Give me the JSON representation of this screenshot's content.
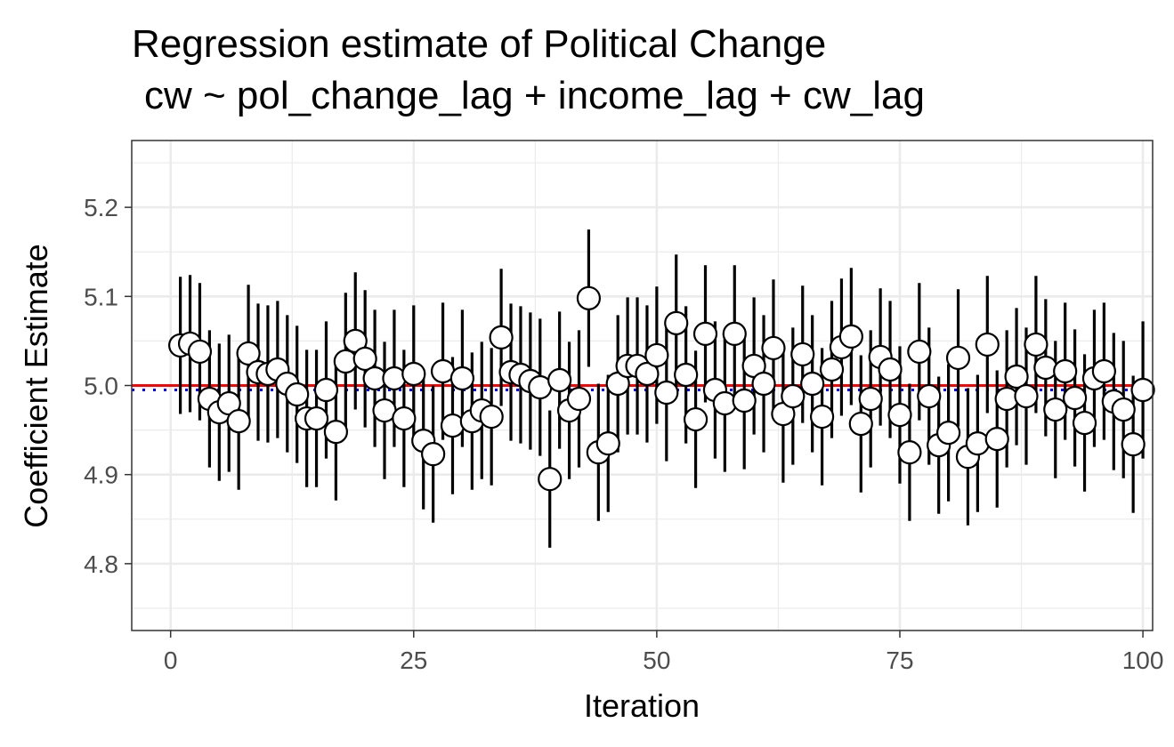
{
  "chart_data": {
    "type": "scatter",
    "title": "Regression estimate of Political Change",
    "subtitle": "cw ~ pol_change_lag + income_lag + cw_lag",
    "xlabel": "Iteration",
    "ylabel": "Coefficient Estimate",
    "xlim": [
      -4,
      101
    ],
    "ylim": [
      4.725,
      5.275
    ],
    "x_ticks": [
      "0",
      "25",
      "50",
      "75",
      "100"
    ],
    "x_tick_values": [
      0,
      25,
      50,
      75,
      100
    ],
    "y_ticks": [
      "4.8",
      "4.9",
      "5.0",
      "5.1",
      "5.2"
    ],
    "y_tick_values": [
      4.8,
      4.9,
      5.0,
      5.1,
      5.2
    ],
    "grid": true,
    "true_value": 5.0,
    "true_value_color": "#ff0000",
    "mean_estimate": 4.995,
    "mean_estimate_color": "#0000ff",
    "point_fill": "#ffffff",
    "point_stroke": "#000000",
    "ci_half_width": 0.077,
    "points": [
      {
        "x": 1,
        "y": 5.045
      },
      {
        "x": 2,
        "y": 5.047
      },
      {
        "x": 3,
        "y": 5.038
      },
      {
        "x": 4,
        "y": 4.985
      },
      {
        "x": 5,
        "y": 4.97
      },
      {
        "x": 6,
        "y": 4.98
      },
      {
        "x": 7,
        "y": 4.96
      },
      {
        "x": 8,
        "y": 5.036
      },
      {
        "x": 9,
        "y": 5.015
      },
      {
        "x": 10,
        "y": 5.013
      },
      {
        "x": 11,
        "y": 5.018
      },
      {
        "x": 12,
        "y": 5.002
      },
      {
        "x": 13,
        "y": 4.99
      },
      {
        "x": 14,
        "y": 4.963
      },
      {
        "x": 15,
        "y": 4.963
      },
      {
        "x": 16,
        "y": 4.995
      },
      {
        "x": 17,
        "y": 4.948
      },
      {
        "x": 18,
        "y": 5.027
      },
      {
        "x": 19,
        "y": 5.05
      },
      {
        "x": 20,
        "y": 5.03
      },
      {
        "x": 21,
        "y": 5.008
      },
      {
        "x": 22,
        "y": 4.972
      },
      {
        "x": 23,
        "y": 5.008
      },
      {
        "x": 24,
        "y": 4.963
      },
      {
        "x": 25,
        "y": 5.013
      },
      {
        "x": 26,
        "y": 4.938
      },
      {
        "x": 27,
        "y": 4.923
      },
      {
        "x": 28,
        "y": 5.016
      },
      {
        "x": 29,
        "y": 4.955
      },
      {
        "x": 30,
        "y": 5.008
      },
      {
        "x": 31,
        "y": 4.96
      },
      {
        "x": 32,
        "y": 4.972
      },
      {
        "x": 33,
        "y": 4.965
      },
      {
        "x": 34,
        "y": 5.054
      },
      {
        "x": 35,
        "y": 5.015
      },
      {
        "x": 36,
        "y": 5.012
      },
      {
        "x": 37,
        "y": 5.005
      },
      {
        "x": 38,
        "y": 4.998
      },
      {
        "x": 39,
        "y": 4.895
      },
      {
        "x": 40,
        "y": 5.006
      },
      {
        "x": 41,
        "y": 4.972
      },
      {
        "x": 42,
        "y": 4.985
      },
      {
        "x": 43,
        "y": 5.098
      },
      {
        "x": 44,
        "y": 4.925
      },
      {
        "x": 45,
        "y": 4.935
      },
      {
        "x": 46,
        "y": 5.002
      },
      {
        "x": 47,
        "y": 5.022
      },
      {
        "x": 48,
        "y": 5.022
      },
      {
        "x": 49,
        "y": 5.013
      },
      {
        "x": 50,
        "y": 5.034
      },
      {
        "x": 51,
        "y": 4.992
      },
      {
        "x": 52,
        "y": 5.07
      },
      {
        "x": 53,
        "y": 5.012
      },
      {
        "x": 54,
        "y": 4.962
      },
      {
        "x": 55,
        "y": 5.058
      },
      {
        "x": 56,
        "y": 4.995
      },
      {
        "x": 57,
        "y": 4.98
      },
      {
        "x": 58,
        "y": 5.058
      },
      {
        "x": 59,
        "y": 4.983
      },
      {
        "x": 60,
        "y": 5.022
      },
      {
        "x": 61,
        "y": 5.002
      },
      {
        "x": 62,
        "y": 5.042
      },
      {
        "x": 63,
        "y": 4.968
      },
      {
        "x": 64,
        "y": 4.988
      },
      {
        "x": 65,
        "y": 5.035
      },
      {
        "x": 66,
        "y": 5.002
      },
      {
        "x": 67,
        "y": 4.965
      },
      {
        "x": 68,
        "y": 5.018
      },
      {
        "x": 69,
        "y": 5.043
      },
      {
        "x": 70,
        "y": 5.055
      },
      {
        "x": 71,
        "y": 4.957
      },
      {
        "x": 72,
        "y": 4.985
      },
      {
        "x": 73,
        "y": 5.032
      },
      {
        "x": 74,
        "y": 5.018
      },
      {
        "x": 75,
        "y": 4.967
      },
      {
        "x": 76,
        "y": 4.925
      },
      {
        "x": 77,
        "y": 5.038
      },
      {
        "x": 78,
        "y": 4.988
      },
      {
        "x": 79,
        "y": 4.933
      },
      {
        "x": 80,
        "y": 4.947
      },
      {
        "x": 81,
        "y": 5.031
      },
      {
        "x": 82,
        "y": 4.92
      },
      {
        "x": 83,
        "y": 4.935
      },
      {
        "x": 84,
        "y": 5.046
      },
      {
        "x": 85,
        "y": 4.94
      },
      {
        "x": 86,
        "y": 4.985
      },
      {
        "x": 87,
        "y": 5.01
      },
      {
        "x": 88,
        "y": 4.988
      },
      {
        "x": 89,
        "y": 5.046
      },
      {
        "x": 90,
        "y": 5.02
      },
      {
        "x": 91,
        "y": 4.973
      },
      {
        "x": 92,
        "y": 5.016
      },
      {
        "x": 93,
        "y": 4.986
      },
      {
        "x": 94,
        "y": 4.958
      },
      {
        "x": 95,
        "y": 5.008
      },
      {
        "x": 96,
        "y": 5.016
      },
      {
        "x": 97,
        "y": 4.982
      },
      {
        "x": 98,
        "y": 4.973
      },
      {
        "x": 99,
        "y": 4.934
      },
      {
        "x": 100,
        "y": 4.995
      }
    ]
  }
}
